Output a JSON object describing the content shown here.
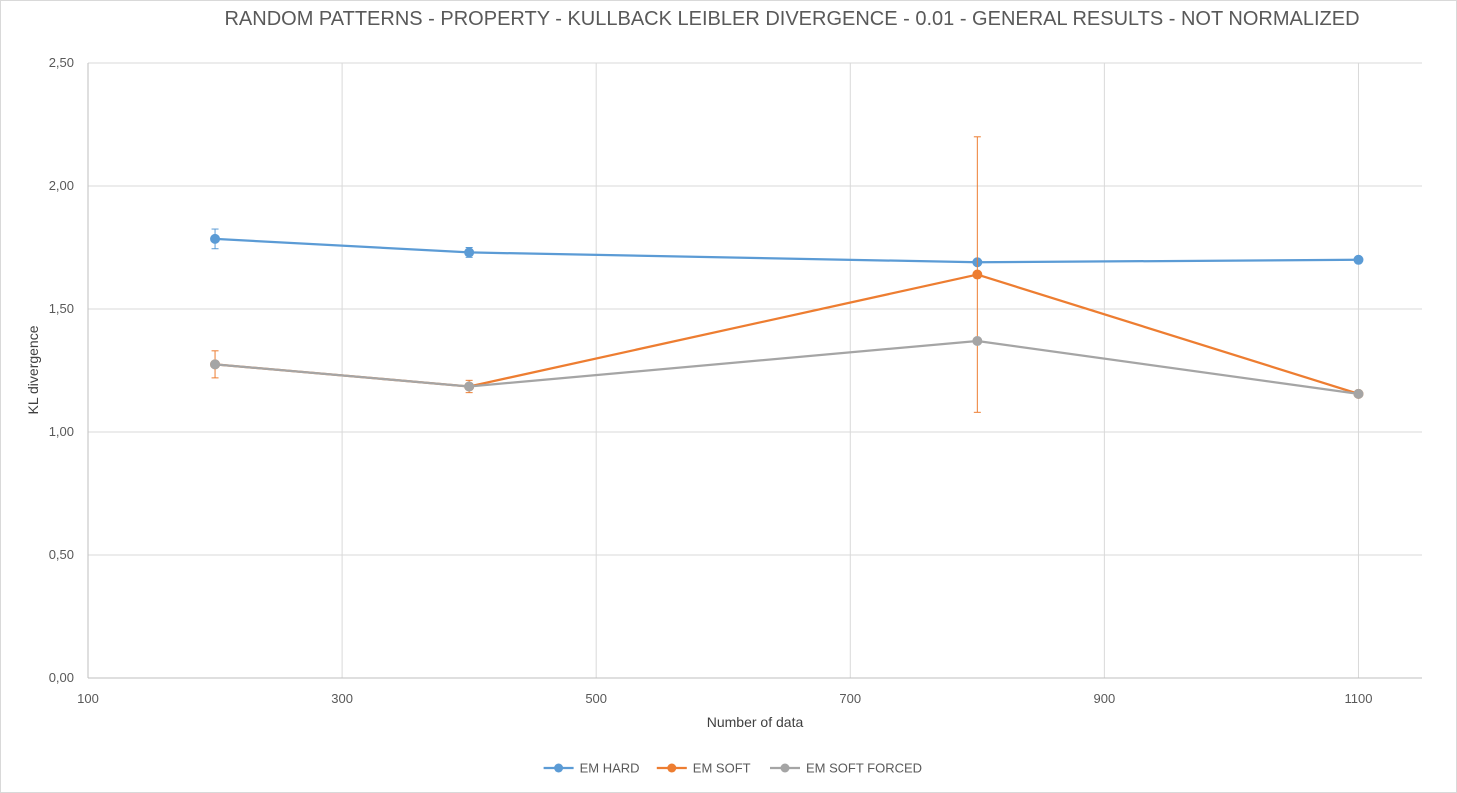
{
  "chart_data": {
    "type": "line",
    "title": "RANDOM PATTERNS - PROPERTY - KULLBACK LEIBLER DIVERGENCE - 0.01 - GENERAL RESULTS - NOT NORMALIZED",
    "xlabel": "Number of data",
    "ylabel": "KL divergence",
    "xlim": [
      100,
      1150
    ],
    "ylim": [
      0,
      2.5
    ],
    "x_ticks": [
      100,
      300,
      500,
      700,
      900,
      1100
    ],
    "x_tick_labels": [
      "100",
      "300",
      "500",
      "700",
      "900",
      "1100"
    ],
    "y_ticks": [
      0,
      0.5,
      1,
      1.5,
      2,
      2.5
    ],
    "y_tick_labels": [
      "0,00",
      "0,50",
      "1,00",
      "1,50",
      "2,00",
      "2,50"
    ],
    "grid": true,
    "legend_position": "bottom",
    "x": [
      200,
      400,
      800,
      1100
    ],
    "series": [
      {
        "name": "EM HARD",
        "color": "#5b9bd5",
        "values": [
          1.785,
          1.73,
          1.69,
          1.7
        ],
        "error": [
          0.04,
          0.02,
          0.0,
          0.0
        ]
      },
      {
        "name": "EM SOFT",
        "color": "#ed7d31",
        "values": [
          1.275,
          1.185,
          1.64,
          1.155
        ],
        "error": [
          0.055,
          0.025,
          0.56,
          0.0
        ]
      },
      {
        "name": "EM SOFT FORCED",
        "color": "#a5a5a5",
        "values": [
          1.275,
          1.185,
          1.37,
          1.155
        ],
        "error": [
          0.0,
          0.0,
          0.0,
          0.0
        ]
      }
    ]
  }
}
